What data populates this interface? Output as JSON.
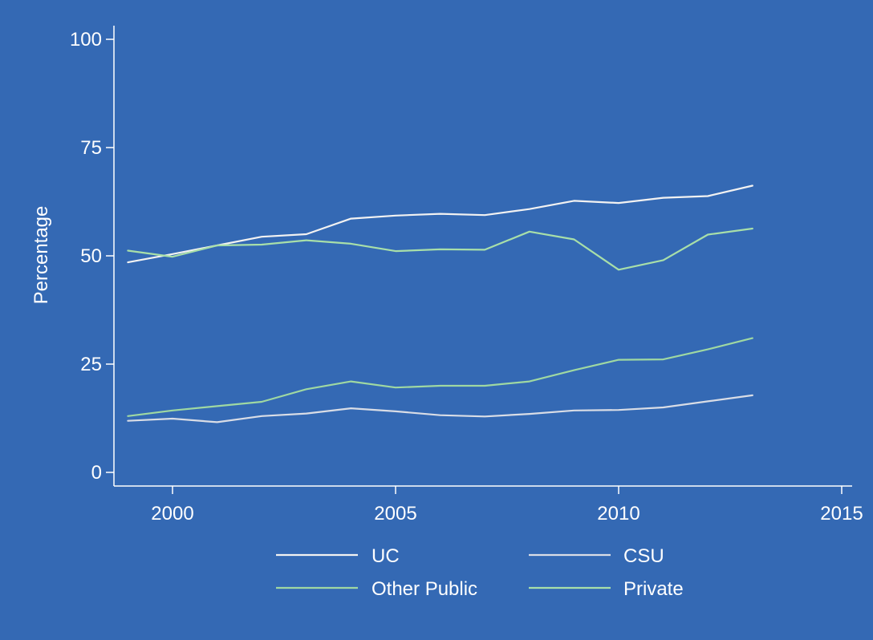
{
  "colors": {
    "background": "#3469b4",
    "axis": "#ffffff",
    "white_line": "#f2f2f2",
    "light_line": "#d9dde6",
    "green_line": "#9fd8a2",
    "green_line_2": "#a8dfa9"
  },
  "chart_data": {
    "type": "line",
    "title": "",
    "xlabel": "",
    "ylabel": "Percentage",
    "xlim": [
      1998.7,
      2015.3
    ],
    "ylim": [
      -3,
      101
    ],
    "x_ticks": [
      2000,
      2005,
      2010,
      2015
    ],
    "y_ticks": [
      0,
      25,
      50,
      75,
      100
    ],
    "x_tick_labels": [
      "2000",
      "2005",
      "2010",
      "2015"
    ],
    "y_tick_labels": [
      "0",
      "25",
      "50",
      "75",
      "100"
    ],
    "grid": false,
    "legend_position": "bottom",
    "x": [
      1999,
      2000,
      2001,
      2002,
      2003,
      2004,
      2005,
      2006,
      2007,
      2008,
      2009,
      2010,
      2011,
      2012,
      2013
    ],
    "series": [
      {
        "name": "UC",
        "color": "#f2f2f2",
        "values": [
          48.5,
          50.4,
          52.4,
          54.4,
          55.0,
          58.6,
          59.3,
          59.7,
          59.4,
          60.8,
          62.7,
          62.2,
          63.4,
          63.8,
          66.2
        ]
      },
      {
        "name": "CSU",
        "color": "#d9dde6",
        "values": [
          11.9,
          12.4,
          11.6,
          13.0,
          13.6,
          14.8,
          14.1,
          13.2,
          12.9,
          13.5,
          14.3,
          14.4,
          15.0,
          16.4,
          17.8
        ]
      },
      {
        "name": "Other Public",
        "color": "#9fd8a2",
        "values": [
          13.0,
          14.3,
          15.3,
          16.3,
          19.2,
          21.0,
          19.6,
          20.0,
          20.0,
          21.0,
          23.6,
          26.0,
          26.1,
          28.4,
          31.0
        ]
      },
      {
        "name": "Private",
        "color": "#a8dfa9",
        "values": [
          51.2,
          49.8,
          52.4,
          52.6,
          53.6,
          52.8,
          51.1,
          51.5,
          51.4,
          55.6,
          53.8,
          46.8,
          49.0,
          54.9,
          56.3
        ]
      }
    ]
  }
}
